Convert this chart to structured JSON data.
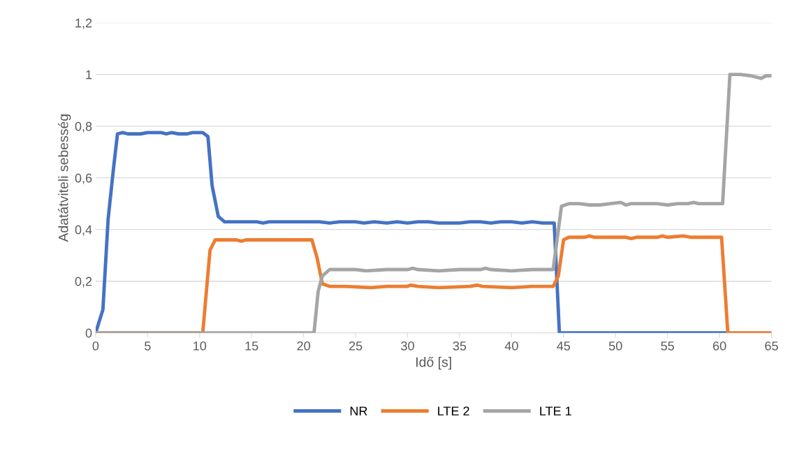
{
  "chart_data": {
    "type": "line",
    "xlabel": "Idő [s]",
    "ylabel": "Adatátviteli sebesség",
    "xlim": [
      0,
      65
    ],
    "xticks": [
      0,
      5,
      10,
      15,
      20,
      25,
      30,
      35,
      40,
      45,
      50,
      55,
      60,
      65
    ],
    "ylim": [
      0,
      1.2
    ],
    "yticks": [
      0,
      {
        "value": 0.2,
        "label": "0,2"
      },
      {
        "value": 0.4,
        "label": "0,4"
      },
      {
        "value": 0.6,
        "label": "0,6"
      },
      {
        "value": 0.8,
        "label": "0,8"
      },
      1,
      {
        "value": 1.2,
        "label": "1,2"
      }
    ],
    "grid": "y",
    "legend": "bottom",
    "marker": "none",
    "line_style": "solid",
    "series": [
      {
        "name": "NR",
        "color": "#4472c4",
        "x": [
          0,
          0.7,
          1.2,
          1.7,
          2.1,
          2.6,
          3.1,
          4.3,
          5,
          6.3,
          6.8,
          7.3,
          8,
          8.8,
          9.3,
          10.3,
          10.8,
          11.2,
          11.8,
          12.4,
          15.5,
          16.1,
          16.7,
          20,
          21.5,
          22.5,
          23.5,
          25,
          25.8,
          26.8,
          28,
          29,
          30,
          31,
          32,
          33,
          35,
          36,
          37,
          38,
          39,
          40,
          41,
          42,
          43,
          44.1,
          44.6,
          60.5
        ],
        "values": [
          0,
          0.09,
          0.44,
          0.63,
          0.77,
          0.775,
          0.77,
          0.77,
          0.775,
          0.775,
          0.77,
          0.775,
          0.77,
          0.77,
          0.775,
          0.775,
          0.76,
          0.57,
          0.45,
          0.43,
          0.43,
          0.425,
          0.43,
          0.43,
          0.43,
          0.425,
          0.43,
          0.43,
          0.425,
          0.43,
          0.425,
          0.43,
          0.425,
          0.43,
          0.43,
          0.425,
          0.425,
          0.43,
          0.43,
          0.425,
          0.43,
          0.43,
          0.425,
          0.43,
          0.425,
          0.425,
          0,
          0
        ]
      },
      {
        "name": "LTE 2",
        "color": "#ed7d31",
        "x": [
          0,
          10.3,
          11,
          11.5,
          13.5,
          14,
          14.5,
          20.8,
          21.3,
          21.8,
          22.5,
          24,
          26.5,
          28,
          30,
          30.3,
          31,
          33,
          36,
          36.7,
          37.2,
          40,
          42,
          44,
          44.5,
          45,
          45.5,
          47,
          47.5,
          48,
          51,
          51.5,
          52,
          54,
          54.5,
          55,
          56.5,
          57.3,
          60.2,
          60.8,
          65
        ],
        "values": [
          0,
          0,
          0.32,
          0.36,
          0.36,
          0.355,
          0.36,
          0.36,
          0.29,
          0.19,
          0.18,
          0.18,
          0.175,
          0.18,
          0.18,
          0.185,
          0.18,
          0.175,
          0.18,
          0.185,
          0.18,
          0.175,
          0.18,
          0.18,
          0.22,
          0.36,
          0.37,
          0.37,
          0.375,
          0.37,
          0.37,
          0.365,
          0.37,
          0.37,
          0.375,
          0.37,
          0.375,
          0.37,
          0.37,
          0,
          0
        ]
      },
      {
        "name": "LTE 1",
        "color": "#a5a5a5",
        "x": [
          0,
          21,
          21.4,
          21.8,
          22.5,
          25,
          26,
          28,
          30,
          30.5,
          31,
          33,
          35,
          37,
          37.5,
          38,
          40,
          42,
          44,
          44.8,
          45.5,
          46.5,
          47.5,
          48.5,
          49.5,
          50.5,
          51,
          51.5,
          54,
          55,
          56,
          57,
          57.5,
          58,
          59.5,
          60.3,
          61,
          62,
          63,
          64,
          64.5,
          65
        ],
        "values": [
          0,
          0,
          0.16,
          0.22,
          0.245,
          0.245,
          0.24,
          0.245,
          0.245,
          0.25,
          0.245,
          0.24,
          0.245,
          0.245,
          0.25,
          0.245,
          0.24,
          0.245,
          0.245,
          0.49,
          0.5,
          0.5,
          0.495,
          0.495,
          0.5,
          0.505,
          0.495,
          0.5,
          0.5,
          0.495,
          0.5,
          0.5,
          0.505,
          0.5,
          0.5,
          0.5,
          1.0,
          1.0,
          0.995,
          0.985,
          0.995,
          0.995
        ]
      }
    ]
  }
}
